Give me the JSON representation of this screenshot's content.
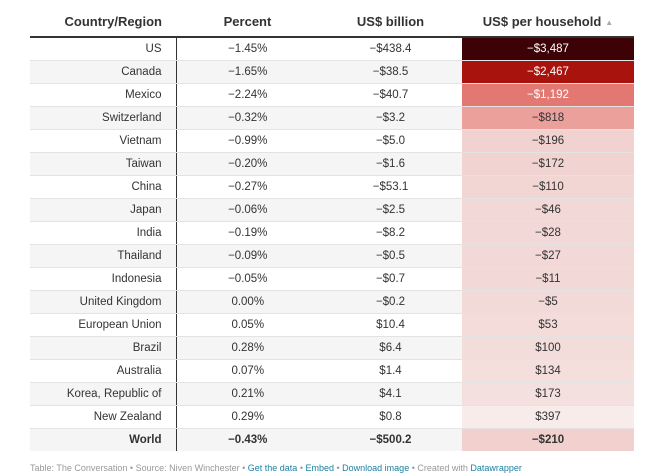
{
  "table": {
    "headers": [
      "Country/Region",
      "Percent",
      "US$ billion",
      "US$ per household"
    ],
    "sort_icon": "sort-ascending-triangle-icon",
    "rows": [
      {
        "country": "US",
        "percent": "−1.45%",
        "billion": "−$438.4",
        "per_household": "−$3,487",
        "heat_bg": "#3d0205",
        "heat_fg": "#ffffff"
      },
      {
        "country": "Canada",
        "percent": "−1.65%",
        "billion": "−$38.5",
        "per_household": "−$2,467",
        "heat_bg": "#a8140d",
        "heat_fg": "#ffffff"
      },
      {
        "country": "Mexico",
        "percent": "−2.24%",
        "billion": "−$40.7",
        "per_household": "−$1,192",
        "heat_bg": "#e37872",
        "heat_fg": "#ffffff"
      },
      {
        "country": "Switzerland",
        "percent": "−0.32%",
        "billion": "−$3.2",
        "per_household": "−$818",
        "heat_bg": "#eba09c",
        "heat_fg": "#333333"
      },
      {
        "country": "Vietnam",
        "percent": "−0.99%",
        "billion": "−$5.0",
        "per_household": "−$196",
        "heat_bg": "#f1d2d0",
        "heat_fg": "#333333"
      },
      {
        "country": "Taiwan",
        "percent": "−0.20%",
        "billion": "−$1.6",
        "per_household": "−$172",
        "heat_bg": "#f1d3d1",
        "heat_fg": "#333333"
      },
      {
        "country": "China",
        "percent": "−0.27%",
        "billion": "−$53.1",
        "per_household": "−$110",
        "heat_bg": "#f2d6d4",
        "heat_fg": "#333333"
      },
      {
        "country": "Japan",
        "percent": "−0.06%",
        "billion": "−$2.5",
        "per_household": "−$46",
        "heat_bg": "#f2d8d6",
        "heat_fg": "#333333"
      },
      {
        "country": "India",
        "percent": "−0.19%",
        "billion": "−$8.2",
        "per_household": "−$28",
        "heat_bg": "#f2d8d6",
        "heat_fg": "#333333"
      },
      {
        "country": "Thailand",
        "percent": "−0.09%",
        "billion": "−$0.5",
        "per_household": "−$27",
        "heat_bg": "#f2d8d6",
        "heat_fg": "#333333"
      },
      {
        "country": "Indonesia",
        "percent": "−0.05%",
        "billion": "−$0.7",
        "per_household": "−$11",
        "heat_bg": "#f2d9d7",
        "heat_fg": "#333333"
      },
      {
        "country": "United Kingdom",
        "percent": "0.00%",
        "billion": "−$0.2",
        "per_household": "−$5",
        "heat_bg": "#f2dad8",
        "heat_fg": "#333333"
      },
      {
        "country": "European Union",
        "percent": "0.05%",
        "billion": "$10.4",
        "per_household": "$53",
        "heat_bg": "#f3dcda",
        "heat_fg": "#333333"
      },
      {
        "country": "Brazil",
        "percent": "0.28%",
        "billion": "$6.4",
        "per_household": "$100",
        "heat_bg": "#f3dddb",
        "heat_fg": "#333333"
      },
      {
        "country": "Australia",
        "percent": "0.07%",
        "billion": "$1.4",
        "per_household": "$134",
        "heat_bg": "#f4dfdd",
        "heat_fg": "#333333"
      },
      {
        "country": "Korea, Republic of",
        "percent": "0.21%",
        "billion": "$4.1",
        "per_household": "$173",
        "heat_bg": "#f4e1df",
        "heat_fg": "#333333"
      },
      {
        "country": "New Zealand",
        "percent": "0.29%",
        "billion": "$0.8",
        "per_household": "$397",
        "heat_bg": "#f8ecea",
        "heat_fg": "#333333"
      }
    ],
    "total": {
      "country": "World",
      "percent": "−0.43%",
      "billion": "−$500.2",
      "per_household": "−$210",
      "heat_bg": "#f1d0ce",
      "heat_fg": "#333333"
    }
  },
  "footer": {
    "table_credit": "Table: The Conversation",
    "source": "Source: Niven Winchester",
    "get_data": "Get the data",
    "embed": "Embed",
    "download": "Download image",
    "created_with": "Created with",
    "datawrapper": "Datawrapper",
    "separator": " • "
  }
}
